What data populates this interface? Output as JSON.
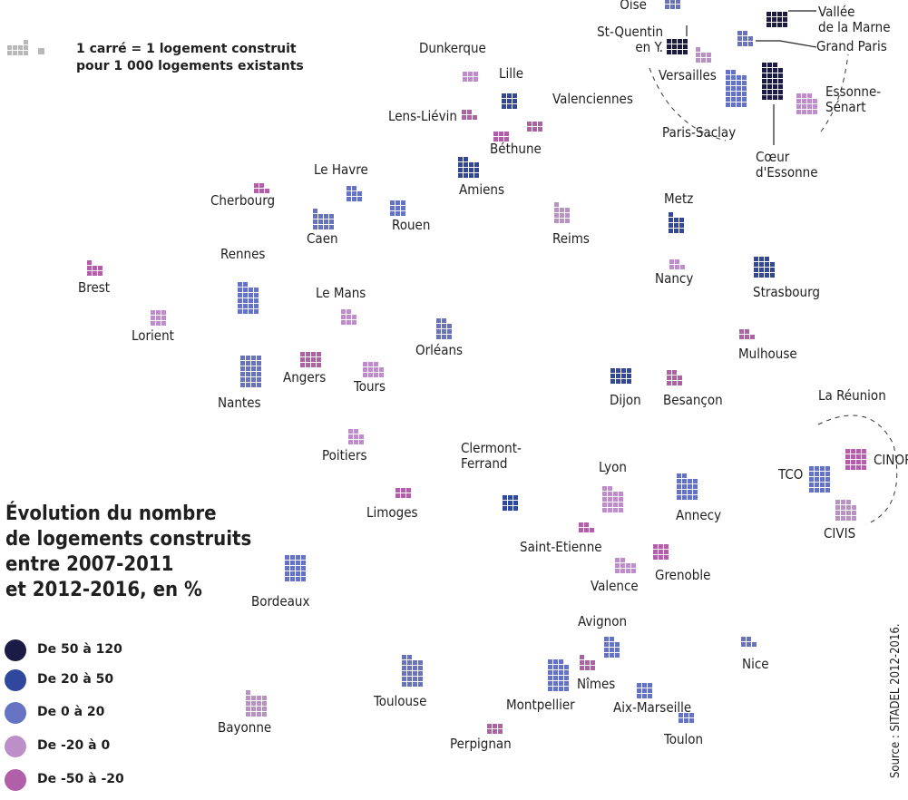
{
  "legend_key": {
    "line1": "1 carré = 1 logement construit",
    "line2": "pour 1 000 logements existants"
  },
  "title": {
    "line1": "Évolution du nombre",
    "line2": "de logements construits",
    "line3": "entre 2007-2011",
    "line4": "et 2012-2016, en %"
  },
  "classes": [
    {
      "label": "De 50 à 120",
      "color": "#1b1b46"
    },
    {
      "label": "De 20 à 50",
      "color": "#2f479c"
    },
    {
      "label": "De 0 à 20",
      "color": "#6673c2"
    },
    {
      "label": "De -20 à 0",
      "color": "#bc8fc8"
    },
    {
      "label": "De -50 à -20",
      "color": "#b05fa8"
    }
  ],
  "source": "Source : SITADEL 2012-2016.",
  "cities": [
    {
      "name": "Oise",
      "cls": 2,
      "n": 6
    },
    {
      "name": "Vallée\nde la Marne",
      "cls": 0,
      "n": 12
    },
    {
      "name": "Grand Paris",
      "cls": 2,
      "n": 8
    },
    {
      "name": "St-Quentin\nen Y.",
      "cls": 0,
      "n": 12
    },
    {
      "name": "Versailles",
      "cls": 3,
      "n": 7
    },
    {
      "name": "Paris-Saclay",
      "cls": 2,
      "n": 26
    },
    {
      "name": "Cœur\nd'Essonne",
      "cls": 0,
      "n": 27
    },
    {
      "name": "Essonne-\nSénart",
      "cls": 3,
      "n": 15
    },
    {
      "name": "Dunkerque",
      "cls": 3,
      "n": 6
    },
    {
      "name": "Lille",
      "cls": 1,
      "n": 9
    },
    {
      "name": "Lens-Liévin",
      "cls": 4,
      "n": 5
    },
    {
      "name": "Valenciennes",
      "cls": 4,
      "n": 6
    },
    {
      "name": "Béthune",
      "cls": 4,
      "n": 6
    },
    {
      "name": "Amiens",
      "cls": 1,
      "n": 14
    },
    {
      "name": "Le Havre",
      "cls": 2,
      "n": 8
    },
    {
      "name": "Cherbourg",
      "cls": 4,
      "n": 5
    },
    {
      "name": "Caen",
      "cls": 2,
      "n": 13
    },
    {
      "name": "Rouen",
      "cls": 2,
      "n": 9
    },
    {
      "name": "Reims",
      "cls": 3,
      "n": 10
    },
    {
      "name": "Metz",
      "cls": 1,
      "n": 10
    },
    {
      "name": "Rennes",
      "cls": 2,
      "n": 22
    },
    {
      "name": "Nancy",
      "cls": 3,
      "n": 5
    },
    {
      "name": "Strasbourg",
      "cls": 1,
      "n": 15
    },
    {
      "name": "Brest",
      "cls": 4,
      "n": 7
    },
    {
      "name": "Le Mans",
      "cls": 3,
      "n": 8
    },
    {
      "name": "Lorient",
      "cls": 3,
      "n": 9
    },
    {
      "name": "Orléans",
      "cls": 2,
      "n": 11
    },
    {
      "name": "Mulhouse",
      "cls": 4,
      "n": 5
    },
    {
      "name": "Angers",
      "cls": 4,
      "n": 12
    },
    {
      "name": "Tours",
      "cls": 3,
      "n": 11
    },
    {
      "name": "Nantes",
      "cls": 2,
      "n": 24
    },
    {
      "name": "Dijon",
      "cls": 1,
      "n": 12
    },
    {
      "name": "Besançon",
      "cls": 4,
      "n": 8
    },
    {
      "name": "La Réunion",
      "cls": null,
      "n": 0
    },
    {
      "name": "Poitiers",
      "cls": 3,
      "n": 8
    },
    {
      "name": "Clermont-\nFerrand",
      "cls": 1,
      "n": 9
    },
    {
      "name": "CINOR",
      "cls": 4,
      "n": 16
    },
    {
      "name": "TCO",
      "cls": 2,
      "n": 20
    },
    {
      "name": "Lyon",
      "cls": 3,
      "n": 18
    },
    {
      "name": "Annecy",
      "cls": 2,
      "n": 18
    },
    {
      "name": "Limoges",
      "cls": 4,
      "n": 6
    },
    {
      "name": "CIVIS",
      "cls": 3,
      "n": 15
    },
    {
      "name": "Saint-Etienne",
      "cls": 4,
      "n": 5
    },
    {
      "name": "Grenoble",
      "cls": 4,
      "n": 9
    },
    {
      "name": "Valence",
      "cls": 3,
      "n": 10
    },
    {
      "name": "Bordeaux",
      "cls": 2,
      "n": 20
    },
    {
      "name": "Avignon",
      "cls": 2,
      "n": 11
    },
    {
      "name": "Nice",
      "cls": 2,
      "n": 5
    },
    {
      "name": "Montpellier",
      "cls": 2,
      "n": 23
    },
    {
      "name": "Nîmes",
      "cls": 4,
      "n": 7
    },
    {
      "name": "Toulouse",
      "cls": 2,
      "n": 22
    },
    {
      "name": "Aix-Marseille",
      "cls": 2,
      "n": 9
    },
    {
      "name": "Bayonne",
      "cls": 3,
      "n": 17
    },
    {
      "name": "Toulon",
      "cls": 2,
      "n": 6
    },
    {
      "name": "Perpignan",
      "cls": 4,
      "n": 6
    }
  ]
}
